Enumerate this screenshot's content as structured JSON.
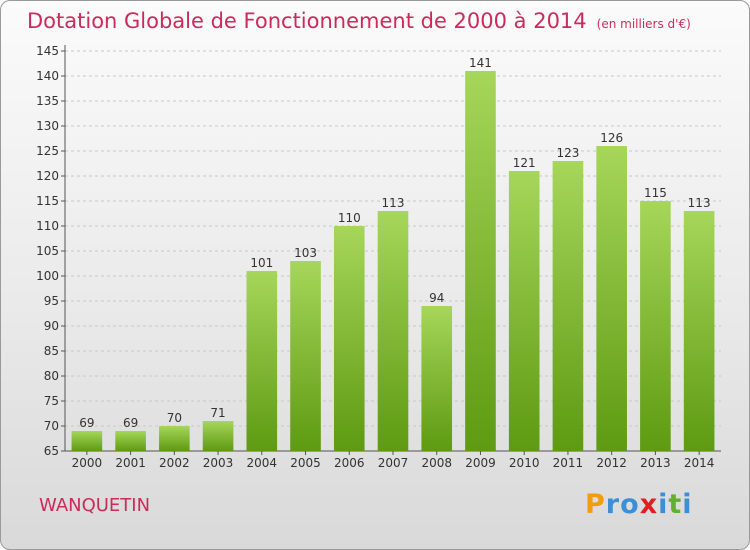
{
  "title": "Dotation Globale de Fonctionnement de 2000 à 2014",
  "unit_label": "(en milliers d'€)",
  "commune": "WANQUETIN",
  "brand": {
    "letters": [
      "P",
      "r",
      "o",
      "x",
      "i",
      "t",
      "i"
    ],
    "colors": [
      "#f39c12",
      "#3a8fd6",
      "#3a8fd6",
      "#e02020",
      "#3a8fd6",
      "#62b030",
      "#3a8fd6"
    ]
  },
  "colors": {
    "bar_top": "#a6d65a",
    "bar_bottom": "#5e9a12",
    "title": "#cc2a5a",
    "grid": "#c8c8c8",
    "axis_text": "#333333"
  },
  "chart_data": {
    "type": "bar",
    "title": "Dotation Globale de Fonctionnement de 2000 à 2014",
    "unit": "(en milliers d'€)",
    "xlabel": "",
    "ylabel": "",
    "categories": [
      "2000",
      "2001",
      "2002",
      "2003",
      "2004",
      "2005",
      "2006",
      "2007",
      "2008",
      "2009",
      "2010",
      "2011",
      "2012",
      "2013",
      "2014"
    ],
    "values": [
      69,
      69,
      70,
      71,
      101,
      103,
      110,
      113,
      94,
      141,
      121,
      123,
      126,
      115,
      113
    ],
    "ylim": [
      65,
      145
    ],
    "yticks": [
      65,
      70,
      75,
      80,
      85,
      90,
      95,
      100,
      105,
      110,
      115,
      120,
      125,
      130,
      135,
      140,
      145
    ],
    "grid": true,
    "data_labels": true
  }
}
